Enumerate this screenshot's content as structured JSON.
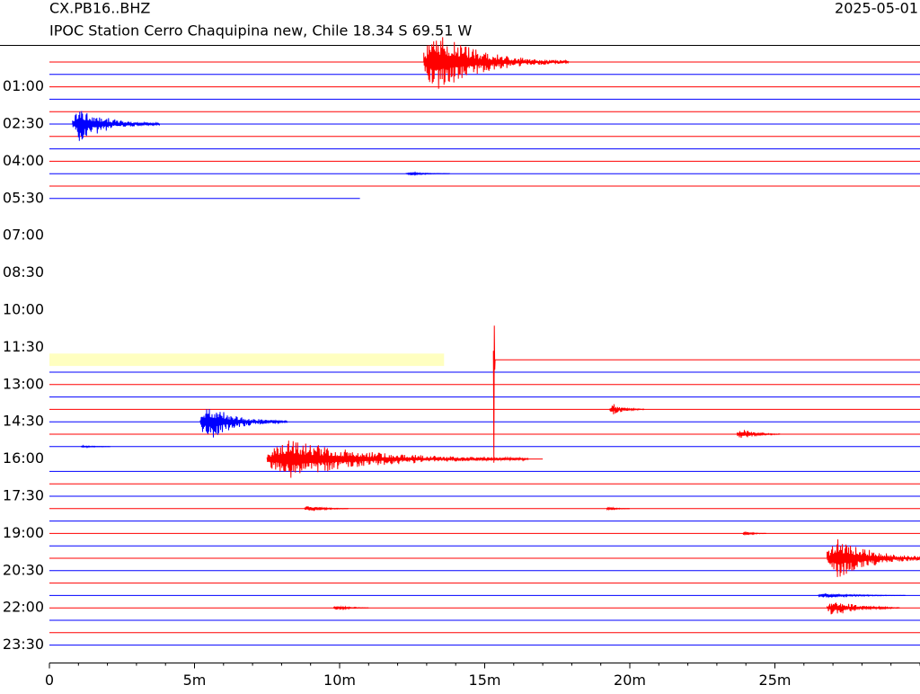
{
  "chart_data": {
    "type": "helicorder",
    "title": "CX.PB16..BHZ",
    "subtitle": "IPOC Station Cerro Chaquipina new, Chile  18.34 S 69.51 W",
    "date": "2025-05-01",
    "row_labels": [
      null,
      null,
      "01:00",
      null,
      null,
      "02:30",
      null,
      null,
      "04:00",
      null,
      null,
      "05:30",
      null,
      null,
      "07:00",
      null,
      null,
      "08:30",
      null,
      null,
      "10:00",
      null,
      null,
      "11:30",
      null,
      null,
      "13:00",
      null,
      null,
      "14:30",
      null,
      null,
      "16:00",
      null,
      null,
      "17:30",
      null,
      null,
      "19:00",
      null,
      null,
      "20:30",
      null,
      null,
      "22:00",
      null,
      null,
      "23:30"
    ],
    "colors": [
      "#ff0000",
      "#0000ff"
    ],
    "xlim": [
      0,
      30
    ],
    "xticks": [
      0,
      {
        "value": 5,
        "label": "5m"
      },
      {
        "value": 10,
        "label": "10m"
      },
      {
        "value": 15,
        "label": "15m"
      },
      {
        "value": 20,
        "label": "20m"
      },
      {
        "value": 25,
        "label": "25m"
      }
    ],
    "xminor_step": 1,
    "traces": [
      {
        "rows": [
          0,
          10
        ],
        "start": 0,
        "end": 30
      },
      {
        "rows": [
          11,
          11
        ],
        "start": 0,
        "end": 10.7
      },
      {
        "rows": [
          24,
          24
        ],
        "start": 15.3,
        "end": 30
      },
      {
        "rows": [
          25,
          31
        ],
        "start": 0,
        "end": 30
      },
      {
        "rows": [
          32,
          32
        ],
        "start": 7.5,
        "end": 17
      },
      {
        "rows": [
          33,
          47
        ],
        "start": 0,
        "end": 30
      }
    ],
    "gap": {
      "row": 24,
      "start": 0,
      "end": 13.6,
      "color": "#ffffc0"
    },
    "events": [
      {
        "row": 0,
        "time": 12.9,
        "duration": 5,
        "amplitude": 2.6
      },
      {
        "row": 5,
        "time": 0.8,
        "duration": 3,
        "amplitude": 1.5
      },
      {
        "row": 9,
        "time": 12.3,
        "duration": 1.5,
        "amplitude": 0.15
      },
      {
        "row": 24,
        "time": 15.3,
        "duration": 0.06,
        "amplitude": 9.5
      },
      {
        "row": 28,
        "time": 19.3,
        "duration": 1.2,
        "amplitude": 0.5
      },
      {
        "row": 29,
        "time": 5.2,
        "duration": 3,
        "amplitude": 1.6
      },
      {
        "row": 30,
        "time": 23.7,
        "duration": 1.5,
        "amplitude": 0.5
      },
      {
        "row": 31,
        "time": 1.1,
        "duration": 1,
        "amplitude": 0.1
      },
      {
        "row": 32,
        "time": 7.5,
        "duration": 9,
        "amplitude": 1.7
      },
      {
        "row": 36,
        "time": 8.8,
        "duration": 1.5,
        "amplitude": 0.3
      },
      {
        "row": 36,
        "time": 19.2,
        "duration": 0.8,
        "amplitude": 0.15
      },
      {
        "row": 38,
        "time": 23.9,
        "duration": 0.8,
        "amplitude": 0.2
      },
      {
        "row": 40,
        "time": 26.8,
        "duration": 4,
        "amplitude": 1.8
      },
      {
        "row": 43,
        "time": 26.5,
        "duration": 3,
        "amplitude": 0.2
      },
      {
        "row": 44,
        "time": 9.8,
        "duration": 1.2,
        "amplitude": 0.2
      },
      {
        "row": 44,
        "time": 26.8,
        "duration": 2.5,
        "amplitude": 0.7
      }
    ]
  }
}
